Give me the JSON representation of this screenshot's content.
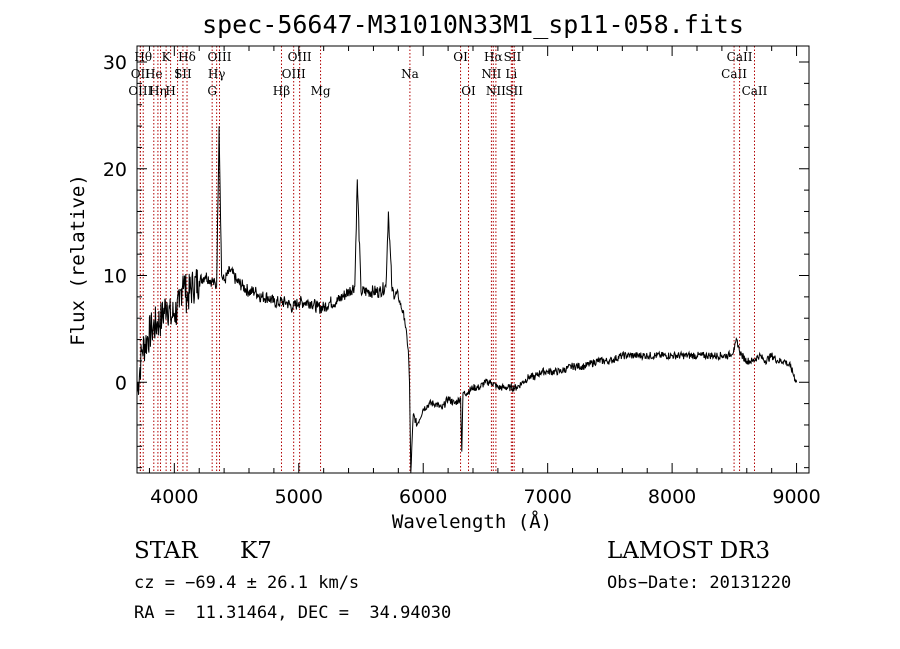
{
  "chart_data": {
    "type": "line",
    "title": "spec-56647-M31010N33M1_sp11-058.fits",
    "xlabel": "Wavelength (Å)",
    "ylabel": "Flux (relative)",
    "xlim": [
      3700,
      9100
    ],
    "ylim": [
      -8.5,
      31.5
    ],
    "xticks": [
      4000,
      5000,
      6000,
      7000,
      8000,
      9000
    ],
    "yticks": [
      0,
      10,
      20,
      30
    ],
    "spectrum": {
      "x": [
        3700,
        3740,
        3780,
        3820,
        3860,
        3900,
        3940,
        3970,
        4000,
        4040,
        4070,
        4100,
        4150,
        4200,
        4250,
        4300,
        4340,
        4360,
        4380,
        4400,
        4450,
        4500,
        4550,
        4600,
        4650,
        4700,
        4750,
        4800,
        4850,
        4900,
        4950,
        5000,
        5050,
        5100,
        5150,
        5200,
        5250,
        5300,
        5350,
        5400,
        5450,
        5470,
        5500,
        5550,
        5600,
        5650,
        5700,
        5720,
        5750,
        5800,
        5850,
        5880,
        5890,
        5900,
        5920,
        5950,
        6000,
        6050,
        6100,
        6150,
        6200,
        6250,
        6300,
        6310,
        6320,
        6350,
        6400,
        6450,
        6500,
        6550,
        6600,
        6650,
        6700,
        6750,
        6800,
        6850,
        6900,
        6950,
        7000,
        7100,
        7200,
        7300,
        7400,
        7500,
        7600,
        7700,
        7800,
        7900,
        8000,
        8100,
        8200,
        8300,
        8400,
        8450,
        8500,
        8520,
        8540,
        8560,
        8600,
        8650,
        8700,
        8750,
        8800,
        8850,
        8900,
        8950,
        9000
      ],
      "y": [
        -1,
        3,
        4,
        5,
        5.5,
        6,
        7.5,
        6,
        6.5,
        7,
        10,
        8,
        9,
        9.5,
        10,
        9.5,
        9,
        24,
        10,
        9.5,
        10.5,
        9.5,
        9,
        8.5,
        8.5,
        8,
        8,
        7.5,
        7.5,
        7.5,
        7,
        7.5,
        7.5,
        7.5,
        7,
        7,
        7.5,
        7.5,
        8,
        8.5,
        9,
        19,
        8.5,
        8.5,
        8.5,
        8.5,
        9,
        16,
        8.5,
        8,
        6,
        3,
        0,
        -8.5,
        -3,
        -4,
        -2.5,
        -2,
        -2,
        -2.5,
        -1.5,
        -2,
        -1.5,
        -6.5,
        -1,
        -1,
        -0.5,
        -0.5,
        0,
        0,
        -0.5,
        -0.5,
        -0.5,
        -0.5,
        0,
        0.5,
        0.5,
        1,
        1,
        1,
        1.5,
        1.5,
        2,
        2,
        2.5,
        2.5,
        2.5,
        2.5,
        2.5,
        2.5,
        2.5,
        2.5,
        2.5,
        2.5,
        3,
        4,
        3,
        2.5,
        2,
        2,
        2.5,
        2,
        2.5,
        2,
        2,
        1.5,
        0
      ]
    },
    "line_markers": [
      {
        "wl": 3750,
        "label": "Hθ",
        "row": 0
      },
      {
        "wl": 3727,
        "label": "OII",
        "row": 1
      },
      {
        "wl": 3727,
        "label": "OIII",
        "row": 2
      },
      {
        "wl": 3835,
        "label": "He",
        "row": 1
      },
      {
        "wl": 3868,
        "label": "Hη",
        "row": 2
      },
      {
        "wl": 3889,
        "label": "",
        "row": 0
      },
      {
        "wl": 3934,
        "label": "K",
        "row": 0
      },
      {
        "wl": 3970,
        "label": "H",
        "row": 2
      },
      {
        "wl": 4026,
        "label": "I",
        "row": 1
      },
      {
        "wl": 4069,
        "label": "SII",
        "row": 1
      },
      {
        "wl": 4102,
        "label": "Hδ",
        "row": 0
      },
      {
        "wl": 4304,
        "label": "G",
        "row": 2
      },
      {
        "wl": 4340,
        "label": "Hγ",
        "row": 1
      },
      {
        "wl": 4363,
        "label": "OIII",
        "row": 0
      },
      {
        "wl": 4861,
        "label": "Hβ",
        "row": 2
      },
      {
        "wl": 4959,
        "label": "OIII",
        "row": 1
      },
      {
        "wl": 5007,
        "label": "OIII",
        "row": 0
      },
      {
        "wl": 5175,
        "label": "Mg",
        "row": 2
      },
      {
        "wl": 5893,
        "label": "Na",
        "row": 1
      },
      {
        "wl": 6300,
        "label": "OI",
        "row": 0
      },
      {
        "wl": 6364,
        "label": "OI",
        "row": 2
      },
      {
        "wl": 6548,
        "label": "NII",
        "row": 1
      },
      {
        "wl": 6563,
        "label": "Hα",
        "row": 0
      },
      {
        "wl": 6584,
        "label": "NII",
        "row": 2
      },
      {
        "wl": 6708,
        "label": "Li",
        "row": 1
      },
      {
        "wl": 6717,
        "label": "SII",
        "row": 0
      },
      {
        "wl": 6731,
        "label": "SII",
        "row": 2
      },
      {
        "wl": 8498,
        "label": "CaII",
        "row": 1
      },
      {
        "wl": 8542,
        "label": "CaII",
        "row": 0
      },
      {
        "wl": 8662,
        "label": "CaII",
        "row": 2
      }
    ]
  },
  "info": {
    "class": "STAR",
    "subclass": "K7",
    "survey": "LAMOST DR3",
    "cz": "cz = −69.4 ± 26.1 km/s",
    "obs_date": "Obs−Date: 20131220",
    "radec": "RA =  11.31464, DEC =  34.94030"
  }
}
